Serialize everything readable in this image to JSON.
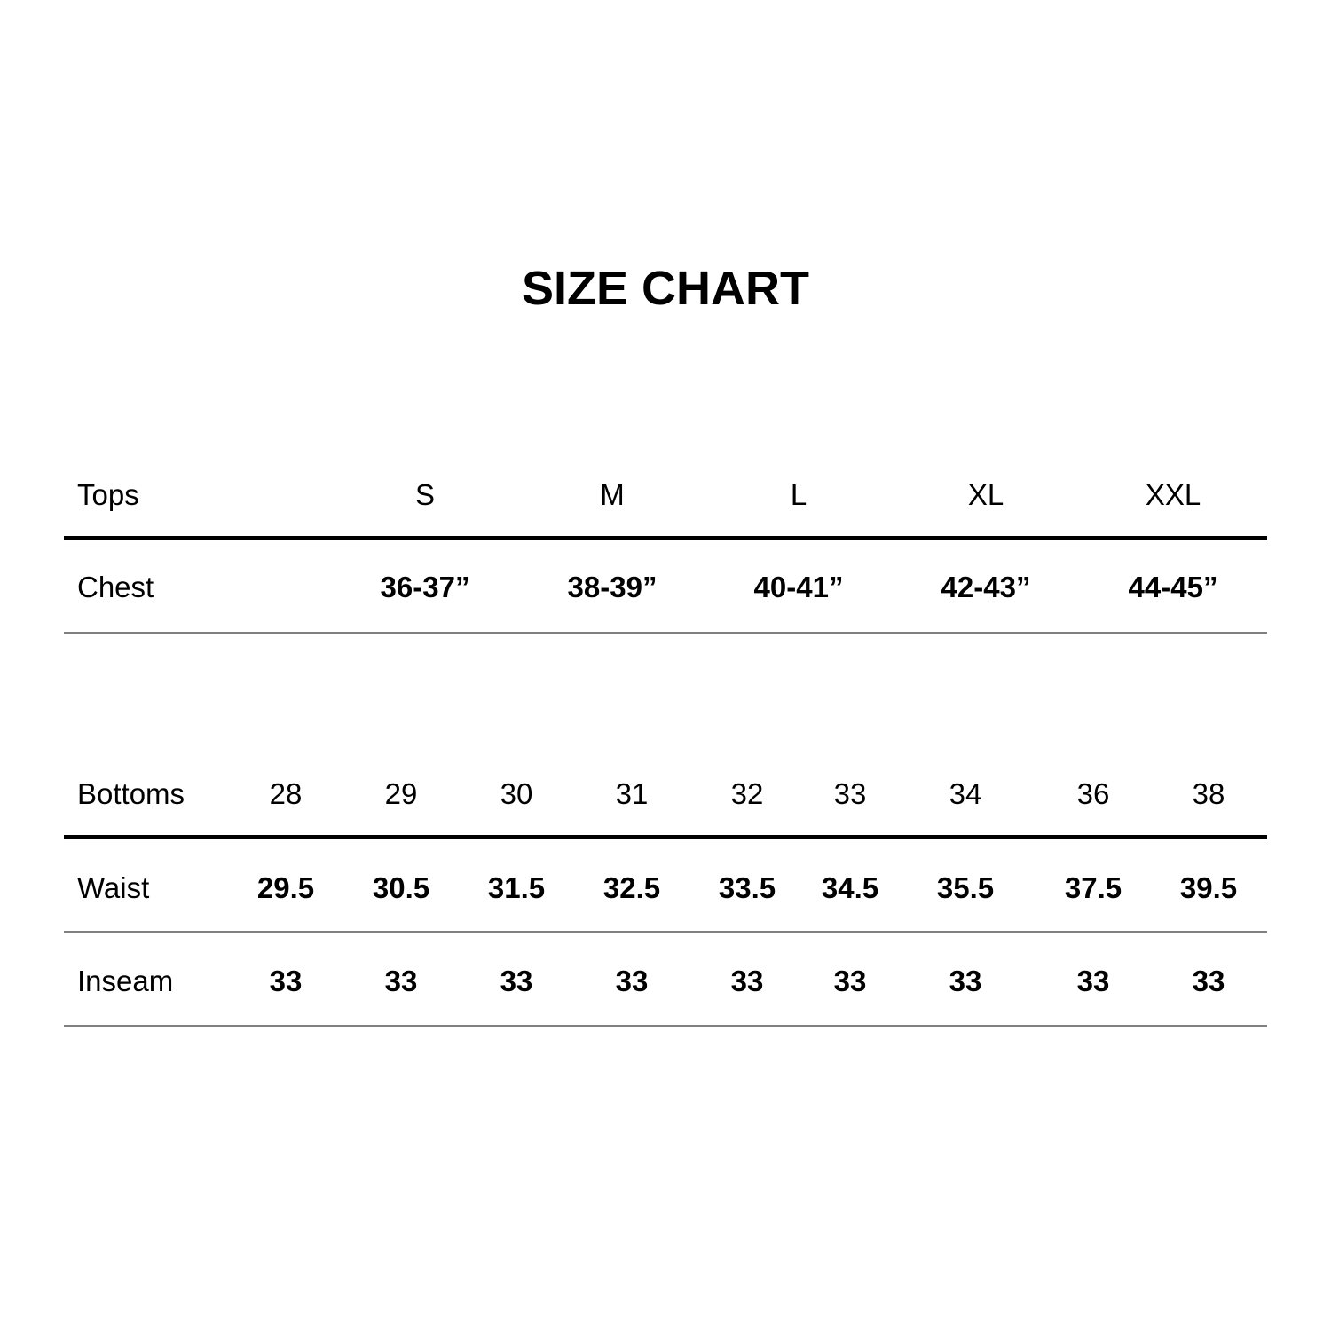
{
  "title": "SIZE CHART",
  "tops": {
    "header_label": "Tops",
    "sizes": [
      "S",
      "M",
      "L",
      "XL",
      "XXL"
    ],
    "rows": [
      {
        "label": "Chest",
        "values": [
          "36-37”",
          "38-39”",
          "40-41”",
          "42-43”",
          "44-45”"
        ]
      }
    ]
  },
  "bottoms": {
    "header_label": "Bottoms",
    "sizes": [
      "28",
      "29",
      "30",
      "31",
      "32",
      "33",
      "34",
      "36",
      "38"
    ],
    "rows": [
      {
        "label": "Waist",
        "values": [
          "29.5",
          "30.5",
          "31.5",
          "32.5",
          "33.5",
          "34.5",
          "35.5",
          "37.5",
          "39.5"
        ]
      },
      {
        "label": "Inseam",
        "values": [
          "33",
          "33",
          "33",
          "33",
          "33",
          "33",
          "33",
          "33",
          "33"
        ]
      }
    ]
  }
}
